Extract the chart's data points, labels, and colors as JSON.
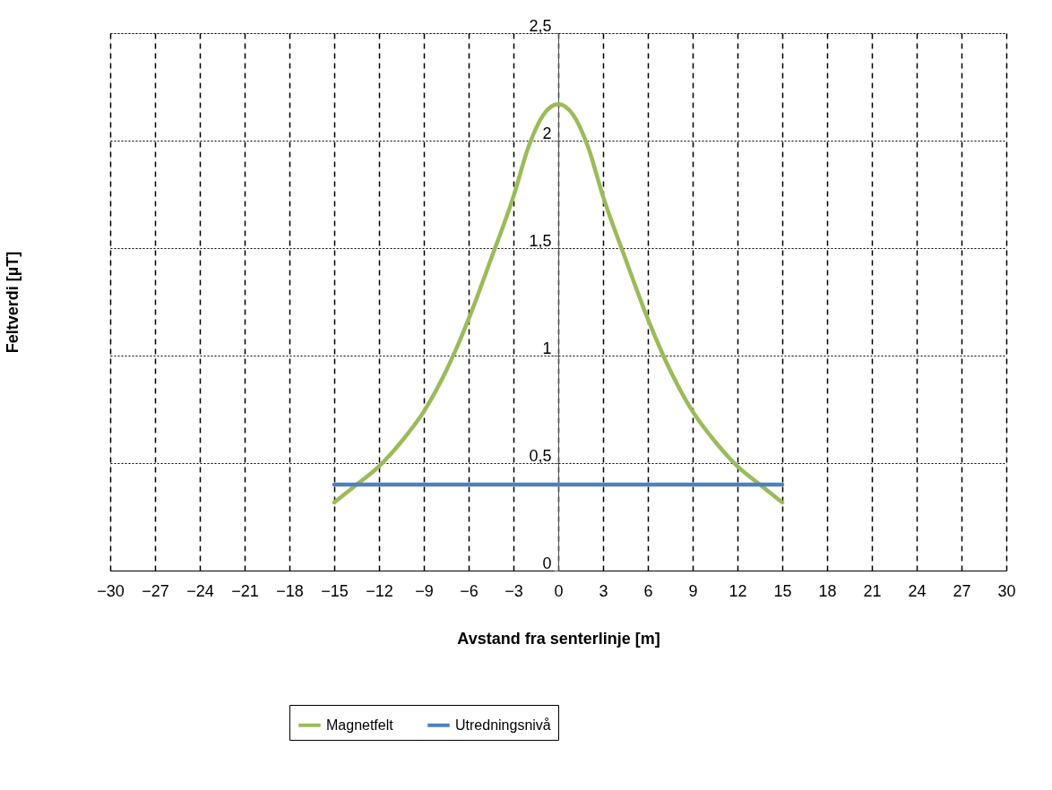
{
  "chart_data": {
    "type": "line",
    "xlabel": "Avstand fra senterlinje [m]",
    "ylabel": "Feltverdi [µT]",
    "xlim": [
      -30,
      30
    ],
    "xticks": [
      -30,
      -27,
      -24,
      -21,
      -18,
      -15,
      -12,
      -9,
      -6,
      -3,
      0,
      3,
      6,
      9,
      12,
      15,
      18,
      21,
      24,
      27,
      30
    ],
    "ylim": [
      0,
      2.5
    ],
    "yticks": [
      0,
      {
        "value": 0.5,
        "label": "0,5"
      },
      1,
      {
        "value": 1.5,
        "label": "1,5"
      },
      2,
      {
        "value": 2.5,
        "label": "2,5"
      }
    ],
    "grid": true,
    "legend": "bottom",
    "marker": "none",
    "line_style": "solid",
    "series": [
      {
        "name": "Magnetfelt",
        "color": "#9bbb59",
        "x": [
          -15,
          -13.5,
          -12,
          -10.5,
          -9,
          -7.5,
          -6,
          -4.5,
          -3,
          -2,
          -1,
          0,
          1,
          2,
          3,
          4.5,
          6,
          7.5,
          9,
          10.5,
          12,
          13.5,
          15
        ],
        "values": [
          0.317,
          0.4,
          0.485,
          0.6,
          0.74,
          0.93,
          1.17,
          1.45,
          1.74,
          1.97,
          2.12,
          2.17,
          2.12,
          1.97,
          1.74,
          1.45,
          1.17,
          0.93,
          0.74,
          0.6,
          0.485,
          0.4,
          0.317
        ]
      },
      {
        "name": "Utredningsnivå",
        "color": "#4f81bd",
        "x": [
          -15,
          15
        ],
        "values": [
          0.4,
          0.4
        ]
      }
    ]
  }
}
